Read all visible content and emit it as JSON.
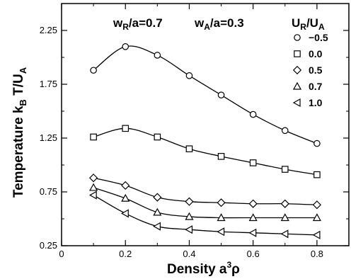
{
  "chart_data": {
    "type": "line",
    "xlabel": "Density a³ρ",
    "ylabel": "Temperature kBT/UA",
    "xlim": [
      0,
      0.9
    ],
    "ylim": [
      0.25,
      2.5
    ],
    "xticks": [
      0,
      0.2,
      0.4,
      0.6,
      0.8
    ],
    "xtick_labels": [
      "0",
      "0.2",
      "0.4",
      "0.6",
      "0.8"
    ],
    "yticks": [
      0.25,
      0.75,
      1.25,
      1.75,
      2.25
    ],
    "ytick_labels": [
      "0.25",
      "0.75",
      "1.25",
      "1.75",
      "2.25"
    ],
    "grid": false,
    "legend_position": "top-right",
    "legend_title": "UR/UA",
    "annotations": [
      "wR/a=0.7",
      "wA/a=0.3"
    ],
    "x": [
      0.1,
      0.2,
      0.3,
      0.4,
      0.5,
      0.6,
      0.7,
      0.8
    ],
    "series": [
      {
        "name": "−0.5",
        "marker": "circle",
        "values": [
          1.88,
          2.1,
          2.02,
          1.83,
          1.65,
          1.47,
          1.32,
          1.2
        ]
      },
      {
        "name": "0.0",
        "marker": "square",
        "values": [
          1.26,
          1.34,
          1.26,
          1.15,
          1.08,
          1.02,
          0.96,
          0.91
        ]
      },
      {
        "name": "0.5",
        "marker": "diamond",
        "values": [
          0.88,
          0.81,
          0.7,
          0.66,
          0.65,
          0.64,
          0.64,
          0.63
        ]
      },
      {
        "name": "0.7",
        "marker": "triangle-up",
        "values": [
          0.79,
          0.69,
          0.56,
          0.52,
          0.51,
          0.51,
          0.51,
          0.51
        ]
      },
      {
        "name": "1.0",
        "marker": "triangle-left",
        "values": [
          0.72,
          0.55,
          0.43,
          0.4,
          0.38,
          0.37,
          0.36,
          0.35
        ]
      }
    ]
  }
}
